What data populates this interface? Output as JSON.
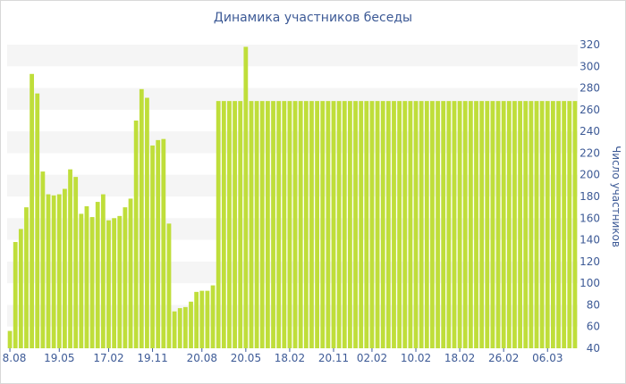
{
  "chart_data": {
    "type": "bar",
    "title": "Динамика участников беседы",
    "xlabel": "",
    "ylabel": "Число участников",
    "ylim": [
      40,
      320
    ],
    "yticks": [
      40,
      60,
      80,
      100,
      120,
      140,
      160,
      180,
      200,
      220,
      240,
      260,
      280,
      300,
      320
    ],
    "xtick_labels": [
      "8.08",
      "19.05",
      "17.02",
      "19.11",
      "20.08",
      "20.05",
      "18.02",
      "20.11",
      "02.02",
      "10.02",
      "18.02",
      "26.02",
      "06.03"
    ],
    "xtick_bar_index": [
      0,
      9,
      18,
      26,
      35,
      43,
      51,
      59,
      66,
      74,
      82,
      90,
      98
    ],
    "grid": "horizontal bands",
    "colors": {
      "bar": "#bfde3a",
      "text": "#3d5a96",
      "band": "#f5f5f5"
    },
    "values": [
      56,
      138,
      150,
      170,
      293,
      275,
      203,
      182,
      181,
      182,
      187,
      205,
      198,
      164,
      171,
      161,
      175,
      182,
      158,
      160,
      162,
      170,
      178,
      250,
      279,
      271,
      227,
      232,
      233,
      155,
      74,
      77,
      78,
      83,
      92,
      93,
      93,
      98,
      268,
      268,
      268,
      268,
      268,
      318,
      268,
      268,
      268,
      268,
      268,
      268,
      268,
      268,
      268,
      268,
      268,
      268,
      268,
      268,
      268,
      268,
      268,
      268,
      268,
      268,
      268,
      268,
      268,
      268,
      268,
      268,
      268,
      268,
      268,
      268,
      268,
      268,
      268,
      268,
      268,
      268,
      268,
      268,
      268,
      268,
      268,
      268,
      268,
      268,
      268,
      268,
      268,
      268,
      268,
      268,
      268,
      268,
      268,
      268,
      268,
      268,
      268,
      268,
      268,
      268
    ]
  }
}
